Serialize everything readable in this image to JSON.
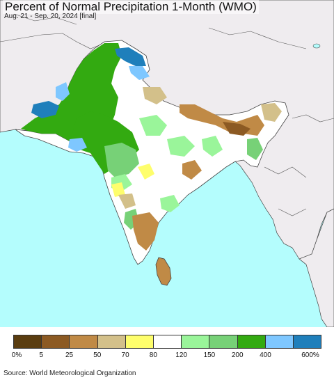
{
  "map": {
    "title": "Percent of Normal Precipitation 1-Month (WMO)",
    "subtitle": "Aug. 21 - Sep. 20, 2024 [final]",
    "colors": {
      "ocean": "#b4fdfd",
      "land_outside": "#efecef",
      "border": "#444444"
    }
  },
  "legend": {
    "colors": [
      "#5a3d10",
      "#8c5a23",
      "#c08a46",
      "#d3c08a",
      "#fefe6c",
      "#ffffff",
      "#9af59a",
      "#77d177",
      "#33aa11",
      "#7ec7ff",
      "#1f7fbb"
    ],
    "labels": [
      "0%",
      "5",
      "25",
      "50",
      "70",
      "80",
      "120",
      "150",
      "200",
      "400",
      "600%"
    ]
  },
  "source": "Source: World Meteorological Organization"
}
